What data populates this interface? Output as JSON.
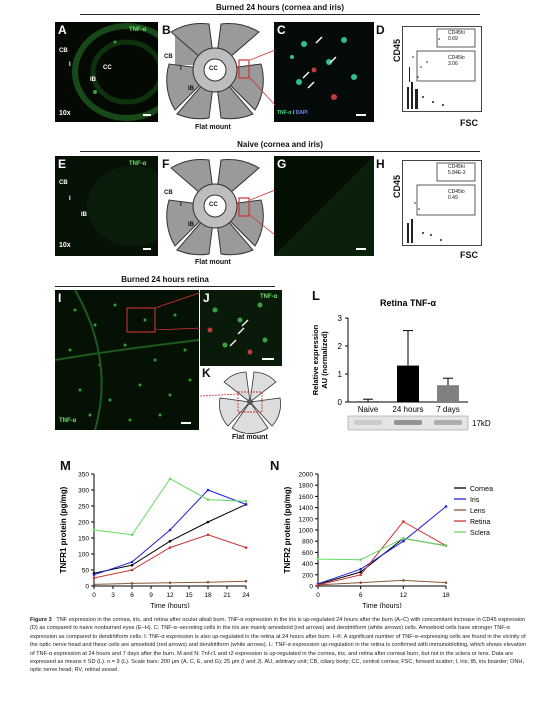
{
  "sections": {
    "top": "Burned 24 hours (cornea and iris)",
    "mid": "Naive (cornea and iris)",
    "retina": "Burned 24 hours retina"
  },
  "panels": {
    "A": {
      "letter": "A",
      "tnf": "TNF-α",
      "labels": [
        "CB",
        "I",
        "CC",
        "IB"
      ],
      "mag": "10x"
    },
    "B": {
      "letter": "B",
      "labels": [
        "CB",
        "I",
        "CC",
        "IB"
      ],
      "caption": "Flat mount"
    },
    "C": {
      "letter": "C",
      "legend_tnf": "TNF-α",
      "legend_sep": " / ",
      "legend_dapi": "DAPI"
    },
    "D": {
      "letter": "D",
      "gate_hi": "CD45hi",
      "gate_hi_val": "0.69",
      "gate_lo": "CD45lo",
      "gate_lo_val": "3.06",
      "xlabel": "FSC",
      "ylabel": "CD45"
    },
    "E": {
      "letter": "E",
      "tnf": "TNF-α",
      "labels": [
        "CB",
        "I",
        "IB"
      ],
      "mag": "10x"
    },
    "F": {
      "letter": "F",
      "labels": [
        "CB",
        "I",
        "CC",
        "IB"
      ],
      "caption": "Flat mount"
    },
    "G": {
      "letter": "G"
    },
    "H": {
      "letter": "H",
      "gate_hi": "CD45hi",
      "gate_hi_val": "5.84E-3",
      "gate_lo": "CD45lo",
      "gate_lo_val": "0.49",
      "xlabel": "FSC",
      "ylabel": "CD45"
    },
    "I": {
      "letter": "I",
      "tnf": "TNF-α"
    },
    "J": {
      "letter": "J",
      "tnf": "TNF-α"
    },
    "K": {
      "letter": "K",
      "caption": "Flat mount"
    }
  },
  "chart_data": [
    {
      "panel": "L",
      "type": "bar",
      "title": "Retina TNF-α",
      "ylabel": "Relative expression AU (normalized)",
      "categories": [
        "Naive",
        "24 hours",
        "7 days"
      ],
      "values": [
        0.02,
        1.3,
        0.6
      ],
      "errors": [
        0.08,
        1.25,
        0.25
      ],
      "colors": [
        "#000000",
        "#000000",
        "#808080"
      ],
      "ylim": [
        0,
        3
      ],
      "yticks": [
        "0",
        "1",
        "2",
        "3"
      ],
      "blot_label": "17kD"
    },
    {
      "panel": "M",
      "type": "line",
      "ylabel": "TNFR1 protein (pg/mg)",
      "xlabel": "Time (hours)",
      "x": [
        0,
        6,
        12,
        18,
        24
      ],
      "xticks": [
        "0",
        "3",
        "6",
        "9",
        "12",
        "15",
        "18",
        "21",
        "24"
      ],
      "yticks": [
        "0",
        "50",
        "100",
        "150",
        "200",
        "250",
        "300",
        "350"
      ],
      "ylim": [
        0,
        350
      ],
      "series": [
        {
          "name": "Cornea",
          "color": "#000000",
          "points": [
            [
              0,
              40
            ],
            [
              6,
              65
            ],
            [
              12,
              140
            ],
            [
              18,
              200
            ],
            [
              24,
              255
            ]
          ]
        },
        {
          "name": "Iris",
          "color": "#2222dd",
          "points": [
            [
              0,
              35
            ],
            [
              6,
              75
            ],
            [
              12,
              175
            ],
            [
              18,
              300
            ],
            [
              24,
              255
            ]
          ]
        },
        {
          "name": "Lens",
          "color": "#8a5a3a",
          "points": [
            [
              0,
              5
            ],
            [
              6,
              8
            ],
            [
              12,
              10
            ],
            [
              18,
              12
            ],
            [
              24,
              15
            ]
          ]
        },
        {
          "name": "Retina",
          "color": "#cc3333",
          "points": [
            [
              0,
              25
            ],
            [
              6,
              50
            ],
            [
              12,
              120
            ],
            [
              18,
              160
            ],
            [
              24,
              120
            ]
          ]
        },
        {
          "name": "Sclera",
          "color": "#66dd66",
          "points": [
            [
              0,
              175
            ],
            [
              6,
              160
            ],
            [
              12,
              335
            ],
            [
              18,
              270
            ],
            [
              24,
              265
            ]
          ]
        }
      ]
    },
    {
      "panel": "N",
      "type": "line",
      "ylabel": "TNFR2 protein (pg/mg)",
      "xlabel": "Time (hours)",
      "x": [
        0,
        6,
        12,
        18
      ],
      "xticks": [
        "0",
        "6",
        "12",
        "18"
      ],
      "yticks": [
        "0",
        "200",
        "400",
        "600",
        "800",
        "1000",
        "1200",
        "1400",
        "1600",
        "1800",
        "2000"
      ],
      "ylim": [
        0,
        2000
      ],
      "series": [
        {
          "name": "Cornea",
          "color": "#000000",
          "points": [
            [
              0,
              30
            ],
            [
              6,
              250
            ],
            [
              12,
              850
            ],
            [
              18,
              720
            ]
          ]
        },
        {
          "name": "Iris",
          "color": "#2222dd",
          "points": [
            [
              0,
              40
            ],
            [
              6,
              300
            ],
            [
              12,
              800
            ],
            [
              18,
              1420
            ]
          ]
        },
        {
          "name": "Lens",
          "color": "#8a5a3a",
          "points": [
            [
              0,
              20
            ],
            [
              6,
              60
            ],
            [
              12,
              100
            ],
            [
              18,
              60
            ]
          ]
        },
        {
          "name": "Retina",
          "color": "#cc3333",
          "points": [
            [
              0,
              20
            ],
            [
              6,
              200
            ],
            [
              12,
              1150
            ],
            [
              18,
              720
            ]
          ]
        },
        {
          "name": "Sclera",
          "color": "#66dd66",
          "points": [
            [
              0,
              480
            ],
            [
              6,
              470
            ],
            [
              12,
              850
            ],
            [
              18,
              720
            ]
          ]
        }
      ]
    }
  ],
  "caption": {
    "figure": "Figure 3",
    "text": "TNF expression in the cornea, iris, and retina after ocular alkali burn. TNF-α expression in the iris is up-regulated 24 hours after the burn (A–C) with concomitant increase in CD45 expression (D) as compared to naive nonburned eyes (E–H). C: TNF-α–secreting cells in the iris are mainly amoeboid (red arrows) and dendritiform (white arrows) cells. Amoeboid cells have stronger TNF-α expression as compared to dendritiform cells. I: TNF-α expression is also up-regulated in the retina at 24 hours after burn. I–K: A significant number of TNF-α–expressing cells are found in the vicinity of the optic nerve head and these cells are amoeboid (red arrows) and dendritiform (white arrows). L: TNF-α expression up-regulation in the retina is confirmed with immunoblotting, which shows elevation of TNF-α expression at 24 hours and 7 days after the burn. M and N: Tnf-r1 and r2 expression is up-regulated in the cornea, iris, and retina after corneal burn, but not in the sclera or lens. Data are expressed as means ± SD (L). n = 9 (L). Scale bars: 200 μm (A, C, E, and G); 25 μm (I and J). AU, arbitrary unit; CB, ciliary body; CC, central cornea; FSC, forward scatter; I, iris; IB, iris boarder; ONH, optic nerve head; RV, retinal vessel."
  }
}
